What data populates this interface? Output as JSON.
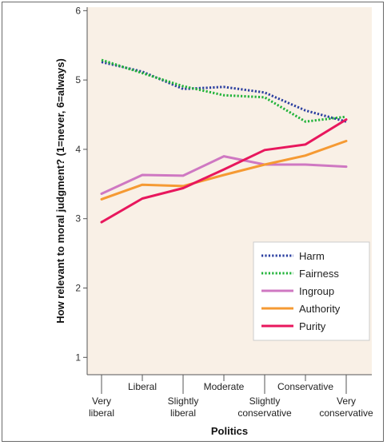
{
  "chart_data": {
    "type": "line",
    "xlabel": "Politics",
    "ylabel": "How relevant to moral judgment? (1=never, 6=always)",
    "ylim": [
      0.75,
      6.05
    ],
    "yticks": [
      1,
      2,
      3,
      4,
      5,
      6
    ],
    "x": [
      "Very liberal",
      "Liberal",
      "Slightly liberal",
      "Moderate",
      "Slightly conservative",
      "Conservative",
      "Very conservative"
    ],
    "x_tick_lines": [
      [
        "Very",
        "liberal"
      ],
      [
        "Liberal"
      ],
      [
        "Slightly",
        "liberal"
      ],
      [
        "Moderate"
      ],
      [
        "Slightly",
        "conservative"
      ],
      [
        "Conservative"
      ],
      [
        "Very",
        "conservative"
      ]
    ],
    "series": [
      {
        "name": "Harm",
        "color": "#2b3fa0",
        "style": "dotted",
        "values": [
          5.26,
          5.12,
          4.87,
          4.9,
          4.82,
          4.56,
          4.4
        ]
      },
      {
        "name": "Fairness",
        "color": "#22b33a",
        "style": "dotted",
        "values": [
          5.29,
          5.1,
          4.91,
          4.78,
          4.75,
          4.4,
          4.47
        ]
      },
      {
        "name": "Ingroup",
        "color": "#cf78c2",
        "style": "solid",
        "values": [
          3.36,
          3.63,
          3.62,
          3.9,
          3.78,
          3.78,
          3.75
        ]
      },
      {
        "name": "Authority",
        "color": "#f59a33",
        "style": "solid",
        "values": [
          3.28,
          3.49,
          3.47,
          3.63,
          3.78,
          3.91,
          4.12
        ]
      },
      {
        "name": "Purity",
        "color": "#e8175d",
        "style": "solid",
        "values": [
          2.95,
          3.29,
          3.44,
          3.71,
          3.99,
          4.07,
          4.43
        ]
      }
    ],
    "legend_position": "bottom-right",
    "grid": false,
    "background": "#f9f0e6"
  }
}
